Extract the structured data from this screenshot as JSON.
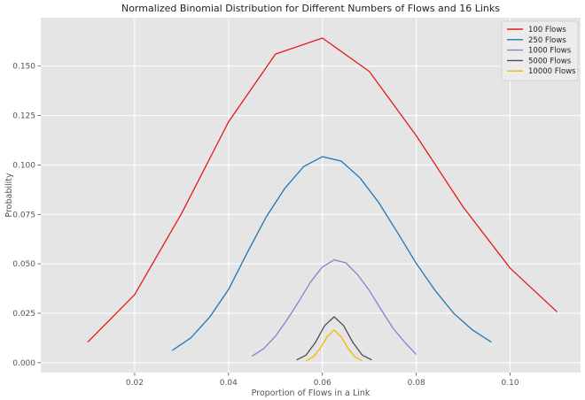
{
  "chart_data": {
    "type": "line",
    "title": "Normalized Binomial Distribution for Different Numbers of Flows and 16 Links",
    "xlabel": "Proportion of Flows in a Link",
    "ylabel": "Probability",
    "xlim": [
      0.0,
      0.115
    ],
    "ylim": [
      -0.005,
      0.1745
    ],
    "xticks": [
      0.02,
      0.04,
      0.06,
      0.08,
      0.1
    ],
    "xtick_labels": [
      "0.02",
      "0.04",
      "0.06",
      "0.08",
      "0.10"
    ],
    "yticks": [
      0.0,
      0.025,
      0.05,
      0.075,
      0.1,
      0.125,
      0.15
    ],
    "ytick_labels": [
      "0.000",
      "0.025",
      "0.050",
      "0.075",
      "0.100",
      "0.125",
      "0.150"
    ],
    "grid": true,
    "legend_position": "top-right",
    "series": [
      {
        "name": "100 Flows",
        "color": "#e31a1c",
        "x": [
          0.01,
          0.02,
          0.03,
          0.04,
          0.05,
          0.06,
          0.07,
          0.08,
          0.09,
          0.1,
          0.11
        ],
        "y": [
          0.0104,
          0.0344,
          0.0755,
          0.1218,
          0.1561,
          0.1642,
          0.1473,
          0.1148,
          0.0787,
          0.0478,
          0.0257
        ]
      },
      {
        "name": "250 Flows",
        "color": "#1f77b4",
        "x": [
          0.028,
          0.032,
          0.036,
          0.04,
          0.044,
          0.048,
          0.052,
          0.056,
          0.06,
          0.064,
          0.068,
          0.072,
          0.076,
          0.08,
          0.084,
          0.088,
          0.092,
          0.096
        ],
        "y": [
          0.0062,
          0.0126,
          0.0231,
          0.037,
          0.0557,
          0.0736,
          0.0882,
          0.0992,
          0.1042,
          0.102,
          0.0935,
          0.081,
          0.0658,
          0.0502,
          0.0366,
          0.0249,
          0.0165,
          0.0104
        ]
      },
      {
        "name": "1000 Flows",
        "color": "#8c7fcf",
        "x": [
          0.045,
          0.0475,
          0.05,
          0.0525,
          0.055,
          0.0575,
          0.06,
          0.0625,
          0.065,
          0.0675,
          0.07,
          0.0725,
          0.075,
          0.0775,
          0.08
        ],
        "y": [
          0.0033,
          0.0071,
          0.0134,
          0.0218,
          0.0311,
          0.0409,
          0.0484,
          0.052,
          0.0505,
          0.0445,
          0.0365,
          0.0269,
          0.0176,
          0.0104,
          0.0042
        ]
      },
      {
        "name": "5000 Flows",
        "color": "#4d4d4d",
        "x": [
          0.0545,
          0.0565,
          0.0585,
          0.0605,
          0.0625,
          0.0645,
          0.0665,
          0.0685,
          0.0705
        ],
        "y": [
          0.0014,
          0.0038,
          0.0102,
          0.0188,
          0.0232,
          0.0188,
          0.0102,
          0.0038,
          0.0014
        ]
      },
      {
        "name": "10000 Flows",
        "color": "#f5b800",
        "x": [
          0.0565,
          0.058,
          0.0595,
          0.061,
          0.0625,
          0.064,
          0.0655,
          0.067,
          0.0685
        ],
        "y": [
          0.0009,
          0.0028,
          0.0071,
          0.0131,
          0.0165,
          0.0131,
          0.0071,
          0.0028,
          0.0009
        ]
      }
    ]
  }
}
